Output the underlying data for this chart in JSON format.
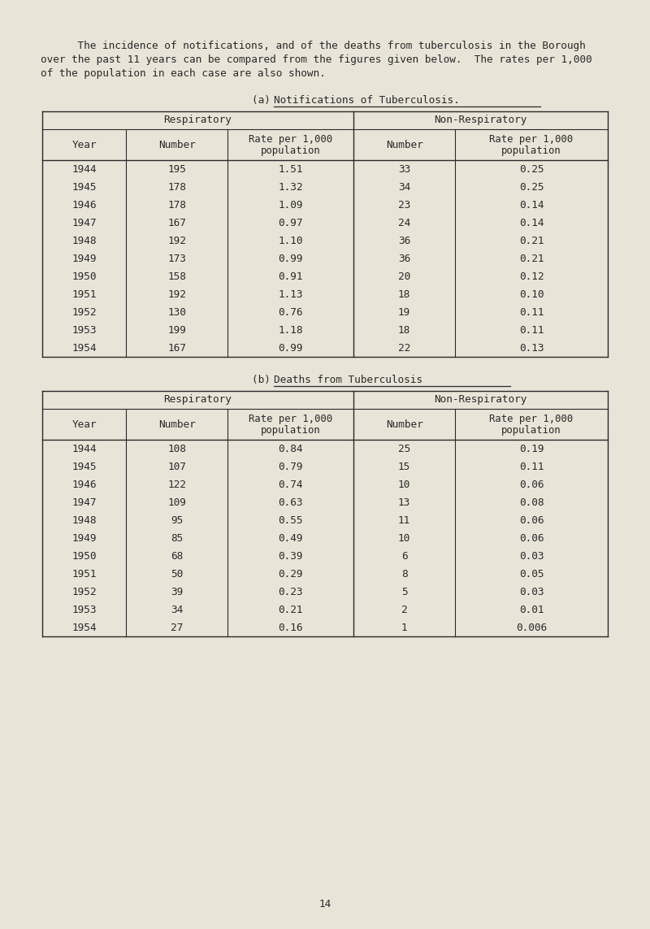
{
  "bg_color": "#e8e4d8",
  "text_color": "#2a2a2a",
  "page_number": "14",
  "notif_years": [
    "1944",
    "1945",
    "1946",
    "1947",
    "1948",
    "1949",
    "1950",
    "1951",
    "1952",
    "1953",
    "1954"
  ],
  "notif_resp_number": [
    "195",
    "178",
    "178",
    "167",
    "192",
    "173",
    "158",
    "192",
    "130",
    "199",
    "167"
  ],
  "notif_resp_rate": [
    "1.51",
    "1.32",
    "1.09",
    "0.97",
    "1.10",
    "0.99",
    "0.91",
    "1.13",
    "0.76",
    "1.18",
    "0.99"
  ],
  "notif_nonresp_number": [
    "33",
    "34",
    "23",
    "24",
    "36",
    "36",
    "20",
    "18",
    "19",
    "18",
    "22"
  ],
  "notif_nonresp_rate": [
    "0.25",
    "0.25",
    "0.14",
    "0.14",
    "0.21",
    "0.21",
    "0.12",
    "0.10",
    "0.11",
    "0.11",
    "0.13"
  ],
  "death_years": [
    "1944",
    "1945",
    "1946",
    "1947",
    "1948",
    "1949",
    "1950",
    "1951",
    "1952",
    "1953",
    "1954"
  ],
  "death_resp_number": [
    "108",
    "107",
    "122",
    "109",
    "95",
    "85",
    "68",
    "50",
    "39",
    "34",
    "27"
  ],
  "death_resp_rate": [
    "0.84",
    "0.79",
    "0.74",
    "0.63",
    "0.55",
    "0.49",
    "0.39",
    "0.29",
    "0.23",
    "0.21",
    "0.16"
  ],
  "death_nonresp_number": [
    "25",
    "15",
    "10",
    "13",
    "11",
    "10",
    "6",
    "8",
    "5",
    "2",
    "1"
  ],
  "death_nonresp_rate": [
    "0.19",
    "0.11",
    "0.06",
    "0.08",
    "0.06",
    "0.06",
    "0.03",
    "0.05",
    "0.03",
    "0.01",
    "0.006"
  ],
  "intro_line1": "    The incidence of notifications, and of the deaths from tuberculosis in the Borough",
  "intro_line2": "over the past 11 years can be compared from the figures given below.  The rates per 1,000",
  "intro_line3": "of the population in each case are also shown.",
  "title_a_prefix": "(a) ",
  "title_a_text": "Notifications of Tuberculosis.",
  "title_b_prefix": "(b) ",
  "title_b_text": "Deaths from Tuberculosis",
  "col0_header": "Year",
  "col1_header": "Number",
  "col23_header_line1": "Rate per 1,000",
  "col23_header_line2": "population",
  "col2_header": "Number",
  "resp_header": "Respiratory",
  "nonresp_header": "Non-Respiratory"
}
